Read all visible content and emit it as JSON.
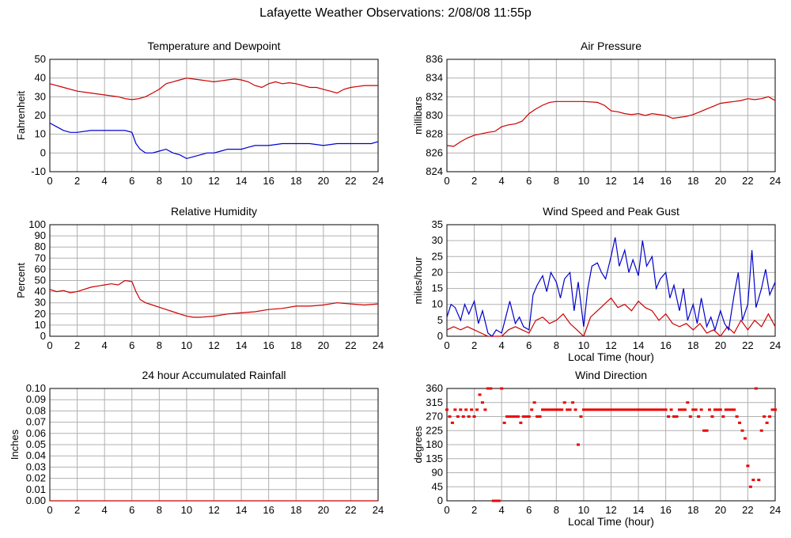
{
  "page_title": "Lafayette Weather Observations: 2/08/08 11:55p",
  "colors": {
    "temperature": "#cc0000",
    "dewpoint": "#0000cc",
    "pressure": "#cc0000",
    "humidity": "#cc0000",
    "wind_speed": "#cc0000",
    "peak_gust": "#0000cc",
    "rainfall": "#cc0000",
    "wind_direction": "#ee0000",
    "grid": "#b0b0b0"
  },
  "chart_data": [
    {
      "id": "temp",
      "type": "line",
      "title": "Temperature and Dewpoint",
      "xlabel": "",
      "ylabel": "Fahrenheit",
      "xlim": [
        0,
        24
      ],
      "ylim": [
        -10,
        50
      ],
      "xticks": [
        0,
        2,
        4,
        6,
        8,
        10,
        12,
        14,
        16,
        18,
        20,
        22,
        24
      ],
      "yticks": [
        -10,
        0,
        10,
        20,
        30,
        40,
        50
      ],
      "grid": true,
      "series": [
        {
          "key": "temperature",
          "x": [
            0,
            1,
            2,
            3,
            4,
            5,
            5.5,
            6,
            6.5,
            7,
            7.5,
            8,
            8.5,
            9,
            9.5,
            10,
            10.5,
            11,
            11.5,
            12,
            12.5,
            13,
            13.5,
            14,
            14.5,
            15,
            15.5,
            16,
            16.5,
            17,
            17.5,
            18,
            18.5,
            19,
            19.5,
            20,
            20.5,
            21,
            21.5,
            22,
            22.5,
            23,
            23.5,
            24
          ],
          "y": [
            37,
            35,
            33,
            32,
            31,
            30,
            29,
            28.5,
            29,
            30,
            32,
            34,
            37,
            38,
            39,
            40,
            39.5,
            39,
            38.5,
            38,
            38.5,
            39,
            39.5,
            39,
            38,
            36,
            35,
            37,
            38,
            37,
            37.5,
            37,
            36,
            35,
            35,
            34,
            33,
            32,
            34,
            35,
            35.5,
            36,
            36,
            36
          ]
        },
        {
          "key": "dewpoint",
          "x": [
            0,
            0.5,
            1,
            1.5,
            2,
            3,
            4,
            5,
            5.5,
            6,
            6.3,
            6.6,
            7,
            7.5,
            8,
            8.5,
            9,
            9.5,
            10,
            10.5,
            11,
            11.5,
            12,
            12.5,
            13,
            13.5,
            14,
            14.5,
            15,
            16,
            17,
            18,
            19,
            20,
            21,
            22,
            23,
            23.5,
            24
          ],
          "y": [
            16,
            14,
            12,
            11,
            11,
            12,
            12,
            12,
            12,
            11,
            5,
            2,
            0,
            0,
            1,
            2,
            0,
            -1,
            -3,
            -2,
            -1,
            0,
            0,
            1,
            2,
            2,
            2,
            3,
            4,
            4,
            5,
            5,
            5,
            4,
            5,
            5,
            5,
            5,
            6
          ]
        }
      ]
    },
    {
      "id": "pressure",
      "type": "line",
      "title": "Air Pressure",
      "xlabel": "",
      "ylabel": "millibars",
      "xlim": [
        0,
        24
      ],
      "ylim": [
        824,
        836
      ],
      "xticks": [
        0,
        2,
        4,
        6,
        8,
        10,
        12,
        14,
        16,
        18,
        20,
        22,
        24
      ],
      "yticks": [
        824,
        826,
        828,
        830,
        832,
        834,
        836
      ],
      "grid": true,
      "series": [
        {
          "key": "pressure",
          "x": [
            0,
            0.5,
            1,
            1.5,
            2,
            3,
            3.5,
            4,
            4.5,
            5,
            5.5,
            6,
            6.5,
            7,
            7.5,
            8,
            8.5,
            9,
            10,
            11,
            11.5,
            12,
            12.5,
            13,
            13.5,
            14,
            14.5,
            15,
            15.5,
            16,
            16.5,
            17,
            17.5,
            18,
            18.5,
            19,
            19.5,
            20,
            20.5,
            21,
            21.5,
            22,
            22.5,
            23,
            23.5,
            24
          ],
          "y": [
            826.8,
            826.7,
            827.2,
            827.6,
            827.9,
            828.2,
            828.3,
            828.8,
            829.0,
            829.1,
            829.4,
            830.2,
            830.7,
            831.1,
            831.4,
            831.5,
            831.5,
            831.5,
            831.5,
            831.4,
            831.1,
            830.5,
            830.4,
            830.2,
            830.1,
            830.2,
            830.0,
            830.2,
            830.1,
            830.0,
            829.7,
            829.8,
            829.9,
            830.1,
            830.4,
            830.7,
            831.0,
            831.3,
            831.4,
            831.5,
            831.6,
            831.8,
            831.7,
            831.8,
            832.0,
            831.6
          ]
        }
      ]
    },
    {
      "id": "humidity",
      "type": "line",
      "title": "Relative Humidity",
      "xlabel": "",
      "ylabel": "Percent",
      "xlim": [
        0,
        24
      ],
      "ylim": [
        0,
        100
      ],
      "xticks": [
        0,
        2,
        4,
        6,
        8,
        10,
        12,
        14,
        16,
        18,
        20,
        22,
        24
      ],
      "yticks": [
        0,
        10,
        20,
        30,
        40,
        50,
        60,
        70,
        80,
        90,
        100
      ],
      "grid": true,
      "series": [
        {
          "key": "humidity",
          "x": [
            0,
            0.5,
            1,
            1.5,
            2,
            3,
            4,
            4.5,
            5,
            5.5,
            6,
            6.3,
            6.6,
            7,
            7.5,
            8,
            8.5,
            9,
            9.5,
            10,
            10.5,
            11,
            12,
            13,
            14,
            15,
            16,
            17,
            18,
            19,
            20,
            21,
            22,
            23,
            24
          ],
          "y": [
            42,
            40,
            41,
            39,
            40,
            44,
            46,
            47,
            46,
            50,
            49,
            40,
            33,
            30,
            28,
            26,
            24,
            22,
            20,
            18,
            17,
            17,
            18,
            20,
            21,
            22,
            24,
            25,
            27,
            27,
            28,
            30,
            29,
            28,
            29
          ]
        }
      ]
    },
    {
      "id": "wind",
      "type": "line",
      "title": "Wind Speed and Peak Gust",
      "xlabel": "Local Time (hour)",
      "ylabel": "miles/hour",
      "xlim": [
        0,
        24
      ],
      "ylim": [
        0,
        35
      ],
      "xticks": [
        0,
        2,
        4,
        6,
        8,
        10,
        12,
        14,
        16,
        18,
        20,
        22,
        24
      ],
      "yticks": [
        0,
        5,
        10,
        15,
        20,
        25,
        30,
        35
      ],
      "grid": true,
      "series": [
        {
          "key": "wind_speed",
          "x": [
            0,
            0.5,
            1,
            1.5,
            2,
            2.5,
            3,
            3.5,
            4,
            4.5,
            5,
            5.5,
            6,
            6.5,
            7,
            7.5,
            8,
            8.5,
            9,
            9.5,
            10,
            10.5,
            11,
            11.5,
            12,
            12.5,
            13,
            13.5,
            14,
            14.5,
            15,
            15.5,
            16,
            16.5,
            17,
            17.5,
            18,
            18.5,
            19,
            19.5,
            20,
            20.5,
            21,
            21.5,
            22,
            22.5,
            23,
            23.5,
            24
          ],
          "y": [
            2,
            3,
            2,
            3,
            2,
            1,
            0,
            0,
            0,
            2,
            3,
            2,
            1,
            5,
            6,
            4,
            5,
            7,
            4,
            2,
            0,
            6,
            8,
            10,
            12,
            9,
            10,
            8,
            11,
            9,
            8,
            5,
            7,
            4,
            3,
            4,
            2,
            4,
            1,
            2,
            0,
            3,
            1,
            5,
            2,
            5,
            3,
            7,
            3
          ]
        },
        {
          "key": "peak_gust",
          "x": [
            0,
            0.3,
            0.6,
            1,
            1.3,
            1.6,
            2,
            2.3,
            2.6,
            3,
            3.3,
            3.6,
            4,
            4.3,
            4.6,
            5,
            5.3,
            5.6,
            6,
            6.3,
            6.6,
            7,
            7.3,
            7.6,
            8,
            8.3,
            8.6,
            9,
            9.3,
            9.6,
            10,
            10.3,
            10.6,
            11,
            11.3,
            11.6,
            12,
            12.3,
            12.6,
            13,
            13.3,
            13.6,
            14,
            14.3,
            14.6,
            15,
            15.3,
            15.6,
            16,
            16.3,
            16.6,
            17,
            17.3,
            17.6,
            18,
            18.3,
            18.6,
            19,
            19.3,
            19.6,
            20,
            20.3,
            20.6,
            21,
            21.3,
            21.6,
            22,
            22.3,
            22.6,
            23,
            23.3,
            23.6,
            24
          ],
          "y": [
            6,
            10,
            9,
            5,
            10,
            7,
            11,
            4,
            8,
            1,
            0,
            2,
            1,
            6,
            11,
            4,
            6,
            3,
            2,
            13,
            16,
            19,
            14,
            20,
            17,
            12,
            18,
            20,
            8,
            17,
            3,
            15,
            22,
            23,
            20,
            18,
            25,
            31,
            22,
            27,
            20,
            24,
            19,
            30,
            22,
            25,
            15,
            18,
            20,
            12,
            16,
            8,
            15,
            5,
            10,
            4,
            12,
            3,
            6,
            2,
            8,
            4,
            2,
            13,
            20,
            5,
            10,
            27,
            9,
            15,
            21,
            13,
            17
          ]
        }
      ]
    },
    {
      "id": "rain",
      "type": "line",
      "title": "24 hour Accumulated Rainfall",
      "xlabel": "",
      "ylabel": "Inches",
      "xlim": [
        0,
        24
      ],
      "ylim": [
        0,
        0.1
      ],
      "xticks": [
        0,
        2,
        4,
        6,
        8,
        10,
        12,
        14,
        16,
        18,
        20,
        22,
        24
      ],
      "yticks": [
        0.0,
        0.01,
        0.02,
        0.03,
        0.04,
        0.05,
        0.06,
        0.07,
        0.08,
        0.09,
        0.1
      ],
      "grid": true,
      "series": [
        {
          "key": "rainfall",
          "x": [
            0,
            24
          ],
          "y": [
            0,
            0
          ]
        }
      ]
    },
    {
      "id": "winddir",
      "type": "scatter",
      "title": "Wind Direction",
      "xlabel": "Local Time (hour)",
      "ylabel": "degrees",
      "xlim": [
        0,
        24
      ],
      "ylim": [
        0,
        360
      ],
      "xticks": [
        0,
        2,
        4,
        6,
        8,
        10,
        12,
        14,
        16,
        18,
        20,
        22,
        24
      ],
      "yticks": [
        0,
        45,
        90,
        135,
        180,
        225,
        270,
        315,
        360
      ],
      "grid": true,
      "series": [
        {
          "key": "wind_direction",
          "x": [
            0,
            0.2,
            0.4,
            0.6,
            0.8,
            1.0,
            1.2,
            1.4,
            1.6,
            1.8,
            2.0,
            2.2,
            2.4,
            2.6,
            2.8,
            3.0,
            3.2,
            3.4,
            3.6,
            3.8,
            4.0,
            4.2,
            4.4,
            4.6,
            4.8,
            5.0,
            5.2,
            5.4,
            5.6,
            5.8,
            6.0,
            6.2,
            6.4,
            6.6,
            6.8,
            7.0,
            7.2,
            7.4,
            7.6,
            7.8,
            8.0,
            8.2,
            8.4,
            8.6,
            8.8,
            9.0,
            9.2,
            9.4,
            9.6,
            9.8,
            10.0,
            10.2,
            10.4,
            10.6,
            10.8,
            11.0,
            11.2,
            11.4,
            11.6,
            11.8,
            12.0,
            12.2,
            12.4,
            12.6,
            12.8,
            13.0,
            13.2,
            13.4,
            13.6,
            13.8,
            14.0,
            14.2,
            14.4,
            14.6,
            14.8,
            15.0,
            15.2,
            15.4,
            15.6,
            15.8,
            16.0,
            16.2,
            16.4,
            16.6,
            16.8,
            17.0,
            17.2,
            17.4,
            17.6,
            17.8,
            18.0,
            18.2,
            18.4,
            18.6,
            18.8,
            19.0,
            19.2,
            19.4,
            19.6,
            19.8,
            20.0,
            20.2,
            20.4,
            20.6,
            20.8,
            21.0,
            21.2,
            21.4,
            21.6,
            21.8,
            22.0,
            22.2,
            22.4,
            22.6,
            22.8,
            23.0,
            23.2,
            23.4,
            23.6,
            23.8,
            24.0
          ],
          "y": [
            292,
            270,
            250,
            292,
            270,
            292,
            270,
            292,
            270,
            292,
            270,
            292,
            340,
            315,
            292,
            360,
            360,
            0,
            0,
            0,
            360,
            250,
            270,
            270,
            270,
            270,
            270,
            250,
            270,
            270,
            270,
            292,
            315,
            270,
            270,
            292,
            292,
            292,
            292,
            292,
            292,
            292,
            292,
            315,
            292,
            292,
            315,
            292,
            180,
            270,
            292,
            292,
            292,
            292,
            292,
            292,
            292,
            292,
            292,
            292,
            292,
            292,
            292,
            292,
            292,
            292,
            292,
            292,
            292,
            292,
            292,
            292,
            292,
            292,
            292,
            292,
            292,
            292,
            292,
            292,
            292,
            270,
            292,
            270,
            270,
            292,
            292,
            292,
            315,
            270,
            292,
            292,
            270,
            292,
            225,
            225,
            292,
            270,
            292,
            292,
            292,
            270,
            292,
            292,
            292,
            292,
            270,
            250,
            225,
            200,
            112,
            45,
            67,
            360,
            67,
            225,
            270,
            250,
            270,
            292,
            292
          ]
        }
      ]
    }
  ]
}
